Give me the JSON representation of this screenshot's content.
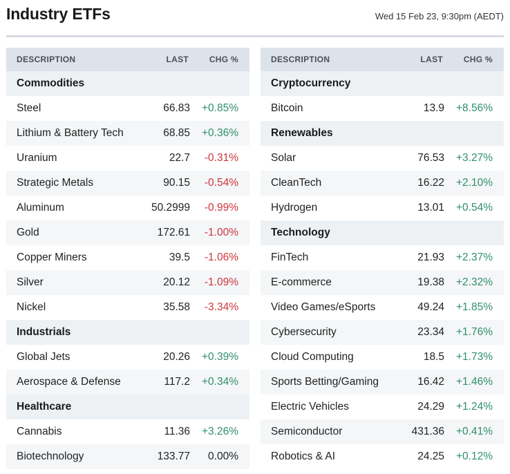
{
  "page": {
    "title": "Industry ETFs",
    "timestamp": "Wed 15 Feb 23, 9:30pm (AEDT)"
  },
  "columns": {
    "description": "DESCRIPTION",
    "last": "LAST",
    "chg": "CHG %"
  },
  "colors": {
    "positive": "#2f8f6a",
    "negative": "#d0343a",
    "header_bg": "#dde3ea"
  },
  "left_panel": [
    {
      "group": "Commodities",
      "items": [
        {
          "name": "Steel",
          "last": "66.83",
          "chg": "+0.85%",
          "dir": "pos"
        },
        {
          "name": "Lithium & Battery Tech",
          "last": "68.85",
          "chg": "+0.36%",
          "dir": "pos"
        },
        {
          "name": "Uranium",
          "last": "22.7",
          "chg": "-0.31%",
          "dir": "neg"
        },
        {
          "name": "Strategic Metals",
          "last": "90.15",
          "chg": "-0.54%",
          "dir": "neg"
        },
        {
          "name": "Aluminum",
          "last": "50.2999",
          "chg": "-0.99%",
          "dir": "neg"
        },
        {
          "name": "Gold",
          "last": "172.61",
          "chg": "-1.00%",
          "dir": "neg"
        },
        {
          "name": "Copper Miners",
          "last": "39.5",
          "chg": "-1.06%",
          "dir": "neg"
        },
        {
          "name": "Silver",
          "last": "20.12",
          "chg": "-1.09%",
          "dir": "neg"
        },
        {
          "name": "Nickel",
          "last": "35.58",
          "chg": "-3.34%",
          "dir": "neg"
        }
      ]
    },
    {
      "group": "Industrials",
      "items": [
        {
          "name": "Global Jets",
          "last": "20.26",
          "chg": "+0.39%",
          "dir": "pos"
        },
        {
          "name": "Aerospace & Defense",
          "last": "117.2",
          "chg": "+0.34%",
          "dir": "pos"
        }
      ]
    },
    {
      "group": "Healthcare",
      "items": [
        {
          "name": "Cannabis",
          "last": "11.36",
          "chg": "+3.26%",
          "dir": "pos"
        },
        {
          "name": "Biotechnology",
          "last": "133.77",
          "chg": "0.00%",
          "dir": "flat"
        }
      ]
    }
  ],
  "right_panel": [
    {
      "group": "Cryptocurrency",
      "items": [
        {
          "name": "Bitcoin",
          "last": "13.9",
          "chg": "+8.56%",
          "dir": "pos"
        }
      ]
    },
    {
      "group": "Renewables",
      "items": [
        {
          "name": "Solar",
          "last": "76.53",
          "chg": "+3.27%",
          "dir": "pos"
        },
        {
          "name": "CleanTech",
          "last": "16.22",
          "chg": "+2.10%",
          "dir": "pos"
        },
        {
          "name": "Hydrogen",
          "last": "13.01",
          "chg": "+0.54%",
          "dir": "pos"
        }
      ]
    },
    {
      "group": "Technology",
      "items": [
        {
          "name": "FinTech",
          "last": "21.93",
          "chg": "+2.37%",
          "dir": "pos"
        },
        {
          "name": "E-commerce",
          "last": "19.38",
          "chg": "+2.32%",
          "dir": "pos"
        },
        {
          "name": "Video Games/eSports",
          "last": "49.24",
          "chg": "+1.85%",
          "dir": "pos"
        },
        {
          "name": "Cybersecurity",
          "last": "23.34",
          "chg": "+1.76%",
          "dir": "pos"
        },
        {
          "name": "Cloud Computing",
          "last": "18.5",
          "chg": "+1.73%",
          "dir": "pos"
        },
        {
          "name": "Sports Betting/Gaming",
          "last": "16.42",
          "chg": "+1.46%",
          "dir": "pos"
        },
        {
          "name": "Electric Vehicles",
          "last": "24.29",
          "chg": "+1.24%",
          "dir": "pos"
        },
        {
          "name": "Semiconductor",
          "last": "431.36",
          "chg": "+0.41%",
          "dir": "pos"
        },
        {
          "name": "Robotics & AI",
          "last": "24.25",
          "chg": "+0.12%",
          "dir": "pos"
        }
      ]
    }
  ]
}
